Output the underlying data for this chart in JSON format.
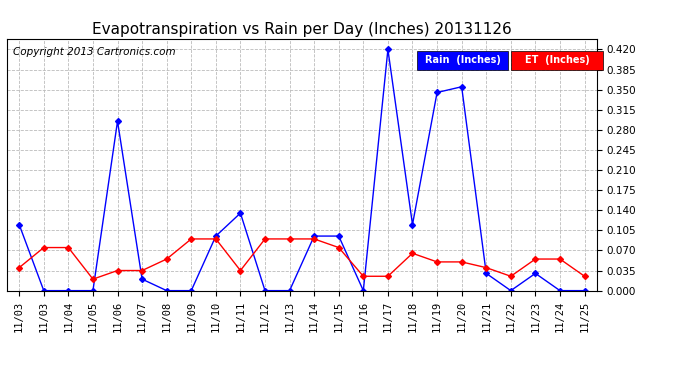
{
  "title": "Evapotranspiration vs Rain per Day (Inches) 20131126",
  "copyright": "Copyright 2013 Cartronics.com",
  "x_labels": [
    "11/03",
    "11/03",
    "11/04",
    "11/05",
    "11/06",
    "11/07",
    "11/08",
    "11/09",
    "11/10",
    "11/11",
    "11/12",
    "11/13",
    "11/14",
    "11/15",
    "11/16",
    "11/17",
    "11/18",
    "11/19",
    "11/20",
    "11/21",
    "11/22",
    "11/23",
    "11/24",
    "11/25"
  ],
  "rain_values": [
    0.115,
    0.0,
    0.0,
    0.0,
    0.295,
    0.02,
    0.0,
    0.0,
    0.095,
    0.135,
    0.0,
    0.0,
    0.095,
    0.095,
    0.0,
    0.42,
    0.115,
    0.345,
    0.355,
    0.03,
    0.0,
    0.03,
    0.0,
    0.0
  ],
  "et_values": [
    0.04,
    0.075,
    0.075,
    0.02,
    0.035,
    0.035,
    0.055,
    0.09,
    0.09,
    0.035,
    0.09,
    0.09,
    0.09,
    0.075,
    0.025,
    0.025,
    0.065,
    0.05,
    0.05,
    0.04,
    0.025,
    0.055,
    0.055,
    0.025
  ],
  "rain_color": "#0000ff",
  "et_color": "#ff0000",
  "background_color": "#ffffff",
  "grid_color": "#bbbbbb",
  "ymin": 0.0,
  "ymax": 0.4375,
  "yticks": [
    0.0,
    0.035,
    0.07,
    0.105,
    0.14,
    0.175,
    0.21,
    0.245,
    0.28,
    0.315,
    0.35,
    0.385,
    0.42
  ],
  "legend_rain_label": "Rain  (Inches)",
  "legend_et_label": "ET  (Inches)",
  "legend_rain_bg": "#0000ff",
  "legend_et_bg": "#ff0000",
  "title_fontsize": 11,
  "copyright_fontsize": 7.5,
  "tick_fontsize": 7.5,
  "marker": "D",
  "marker_size": 3
}
